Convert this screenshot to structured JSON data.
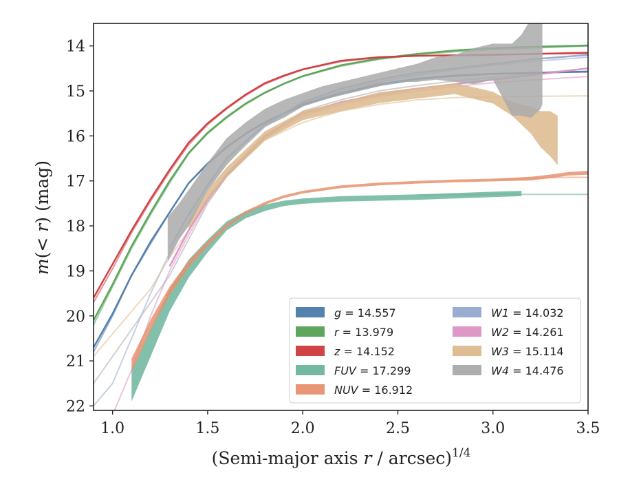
{
  "chart_data": {
    "type": "area",
    "xlabel": "(Semi-major axis r / arcsec)^1/4",
    "xlabel_main": "(Semi-major axis ",
    "xlabel_var": "r",
    "xlabel_rest": " / arcsec)",
    "xlabel_sup": "1/4",
    "ylabel": "m(< r) (mag)",
    "ylabel_m": "m",
    "ylabel_paren": "(< ",
    "ylabel_r": "r",
    "ylabel_close": ")",
    "ylabel_unit": " (mag)",
    "xlim": [
      0.9,
      3.5
    ],
    "ylim": [
      22.1,
      13.5
    ],
    "y_inverted": true,
    "xticks": [
      1.0,
      1.5,
      2.0,
      2.5,
      3.0,
      3.5
    ],
    "xtick_labels": [
      "1.0",
      "1.5",
      "2.0",
      "2.5",
      "3.0",
      "3.5"
    ],
    "yticks": [
      14,
      15,
      16,
      17,
      18,
      19,
      20,
      21,
      22
    ],
    "ytick_labels": [
      "14",
      "15",
      "16",
      "17",
      "18",
      "19",
      "20",
      "21",
      "22"
    ],
    "grid": false,
    "legend_position": "lower-right",
    "series": [
      {
        "name": "g",
        "label_var": "g",
        "label_value": " = 14.557",
        "color": "#4c7aaa",
        "total": 14.557,
        "model_x": [
          0.9,
          1.0,
          1.1,
          1.2,
          1.3,
          1.4,
          1.5,
          1.6,
          1.7,
          1.8,
          1.9,
          2.0,
          2.2,
          2.4,
          2.6,
          2.8,
          3.0,
          3.2,
          3.5
        ],
        "model_y": [
          20.8,
          20.0,
          19.1,
          18.4,
          17.7,
          17.05,
          16.6,
          16.25,
          15.95,
          15.7,
          15.5,
          15.33,
          15.07,
          14.88,
          14.75,
          14.67,
          14.62,
          14.6,
          14.58
        ],
        "obs_x": [
          0.9,
          1.0,
          1.1,
          1.2,
          1.3,
          1.4,
          1.5,
          1.6,
          1.7,
          1.8,
          1.9,
          2.0,
          2.2,
          2.4,
          2.6,
          2.8,
          3.0,
          3.2,
          3.5
        ],
        "obs_y": [
          20.7,
          19.95,
          19.1,
          18.35,
          17.7,
          17.05,
          16.62,
          16.25,
          15.95,
          15.7,
          15.5,
          15.3,
          15.05,
          14.85,
          14.73,
          14.66,
          14.62,
          14.6,
          14.57
        ]
      },
      {
        "name": "r",
        "label_var": "r",
        "label_value": " = 13.979",
        "color": "#55a154",
        "total": 13.979,
        "model_x": [
          0.9,
          1.0,
          1.1,
          1.2,
          1.3,
          1.4,
          1.5,
          1.6,
          1.7,
          1.8,
          1.9,
          2.0,
          2.2,
          2.4,
          2.6,
          2.8,
          3.0,
          3.2,
          3.5
        ],
        "model_y": [
          20.2,
          19.35,
          18.5,
          17.75,
          17.05,
          16.4,
          15.95,
          15.6,
          15.3,
          15.05,
          14.85,
          14.68,
          14.45,
          14.3,
          14.2,
          14.13,
          14.08,
          14.05,
          14.0
        ],
        "obs_x": [
          0.9,
          1.0,
          1.1,
          1.2,
          1.3,
          1.4,
          1.5,
          1.6,
          1.7,
          1.8,
          1.9,
          2.0,
          2.2,
          2.4,
          2.6,
          2.8,
          3.0,
          3.2,
          3.5
        ],
        "obs_y": [
          20.1,
          19.3,
          18.45,
          17.7,
          17.0,
          16.38,
          15.93,
          15.58,
          15.28,
          15.04,
          14.84,
          14.67,
          14.43,
          14.28,
          14.18,
          14.1,
          14.05,
          14.02,
          13.99
        ]
      },
      {
        "name": "z",
        "label_var": "z",
        "label_value": " = 14.152",
        "color": "#cd3a3e",
        "total": 14.152,
        "model_x": [
          0.9,
          1.0,
          1.1,
          1.2,
          1.3,
          1.4,
          1.5,
          1.6,
          1.7,
          1.8,
          1.9,
          2.0,
          2.2,
          2.4,
          2.6,
          2.8,
          3.0,
          3.2,
          3.5
        ],
        "model_y": [
          19.7,
          18.95,
          18.15,
          17.45,
          16.8,
          16.2,
          15.75,
          15.4,
          15.1,
          14.85,
          14.68,
          14.53,
          14.35,
          14.26,
          14.22,
          14.2,
          14.19,
          14.18,
          14.17
        ],
        "obs_x": [
          0.9,
          1.0,
          1.1,
          1.2,
          1.3,
          1.4,
          1.5,
          1.6,
          1.7,
          1.8,
          1.9,
          2.0,
          2.2,
          2.4,
          2.6,
          2.8,
          3.0,
          3.2,
          3.5
        ],
        "obs_y": [
          19.6,
          18.85,
          18.1,
          17.4,
          16.75,
          16.15,
          15.72,
          15.38,
          15.08,
          14.83,
          14.66,
          14.52,
          14.33,
          14.25,
          14.22,
          14.21,
          14.2,
          14.18,
          14.15
        ]
      },
      {
        "name": "FUV",
        "label_var": "FUV",
        "label_value": " = 17.299",
        "color": "#6cb59d",
        "total": 17.299,
        "model_x": [
          2.6,
          2.8,
          3.0,
          3.15,
          3.3,
          3.5
        ],
        "model_y": [
          17.32,
          17.31,
          17.3,
          17.3,
          17.3,
          17.3
        ],
        "obs_x": [
          1.1,
          1.2,
          1.3,
          1.4,
          1.5,
          1.6,
          1.7,
          1.8,
          1.9,
          2.0,
          2.2,
          2.4,
          2.6,
          2.8,
          3.0,
          3.15
        ],
        "obs_y": [
          21.55,
          20.6,
          19.65,
          18.95,
          18.45,
          18.0,
          17.75,
          17.6,
          17.5,
          17.45,
          17.4,
          17.38,
          17.36,
          17.33,
          17.3,
          17.28
        ],
        "obs_err": [
          0.35,
          0.3,
          0.25,
          0.2,
          0.14,
          0.1,
          0.08,
          0.07,
          0.06,
          0.06,
          0.06,
          0.06,
          0.06,
          0.06,
          0.06,
          0.06
        ]
      },
      {
        "name": "NUV",
        "label_var": "NUV",
        "label_value": " = 16.912",
        "color": "#e8906d",
        "total": 16.912,
        "model_x": [
          3.0,
          3.1,
          3.2,
          3.3,
          3.4,
          3.5
        ],
        "model_y": [
          16.98,
          16.96,
          16.94,
          16.93,
          16.92,
          16.92
        ],
        "obs_x": [
          1.1,
          1.2,
          1.3,
          1.4,
          1.5,
          1.6,
          1.7,
          1.8,
          1.9,
          2.0,
          2.2,
          2.4,
          2.6,
          2.8,
          3.0,
          3.2,
          3.3,
          3.4,
          3.5
        ],
        "obs_y": [
          21.1,
          20.2,
          19.45,
          18.85,
          18.4,
          18.0,
          17.7,
          17.5,
          17.35,
          17.25,
          17.13,
          17.07,
          17.03,
          17.0,
          16.98,
          16.95,
          16.9,
          16.84,
          16.82
        ],
        "obs_err": [
          0.15,
          0.12,
          0.1,
          0.07,
          0.05,
          0.04,
          0.03,
          0.03,
          0.03,
          0.03,
          0.03,
          0.03,
          0.03,
          0.03,
          0.03,
          0.04,
          0.04,
          0.04,
          0.04
        ]
      },
      {
        "name": "W1",
        "label_var": "W1",
        "label_value": " = 14.032",
        "color": "#96a8cf",
        "total": 14.032,
        "model_x": [
          0.9,
          1.0,
          1.1,
          1.2,
          1.3,
          1.4,
          1.5,
          1.6,
          1.8,
          2.0,
          2.2,
          2.4,
          2.6,
          2.8,
          3.0,
          3.2,
          3.5
        ],
        "model_y": [
          22.0,
          21.5,
          20.5,
          19.5,
          18.6,
          17.9,
          17.2,
          16.6,
          15.8,
          15.3,
          15.0,
          14.8,
          14.65,
          14.53,
          14.43,
          14.35,
          14.25
        ],
        "obs_x": [
          1.3,
          1.4,
          1.5,
          1.6,
          1.8,
          2.0,
          2.2,
          2.4,
          2.6,
          2.8,
          3.0,
          3.2,
          3.5
        ],
        "obs_y": [
          18.5,
          17.75,
          17.1,
          16.5,
          15.75,
          15.25,
          14.95,
          14.75,
          14.6,
          14.5,
          14.4,
          14.3,
          14.2
        ]
      },
      {
        "name": "W2",
        "label_var": "W2",
        "label_value": " = 14.261",
        "color": "#dc92c4",
        "total": 14.261,
        "model_x": [
          0.9,
          1.0,
          1.1,
          1.2,
          1.3,
          1.4,
          1.5,
          1.6,
          1.8,
          2.0,
          2.2,
          2.4,
          2.6,
          2.8,
          3.0,
          3.2,
          3.5
        ],
        "model_y": [
          22.4,
          22.2,
          21.2,
          20.0,
          19.0,
          18.2,
          17.45,
          16.9,
          16.05,
          15.55,
          15.3,
          15.12,
          15.0,
          14.9,
          14.82,
          14.76,
          14.68
        ],
        "obs_x": [
          1.3,
          1.4,
          1.5,
          1.6,
          1.8,
          2.0,
          2.2,
          2.4,
          2.6,
          2.8,
          3.0,
          3.2,
          3.5
        ],
        "obs_y": [
          18.9,
          18.1,
          17.4,
          16.85,
          16.0,
          15.5,
          15.25,
          15.08,
          14.95,
          14.85,
          14.75,
          14.65,
          14.5
        ]
      },
      {
        "name": "W3",
        "label_var": "W3",
        "label_value": " = 15.114",
        "color": "#dcb98d",
        "total": 15.114,
        "model_x": [
          0.9,
          1.0,
          1.1,
          1.2,
          1.3,
          1.4,
          1.5,
          1.6,
          1.8,
          2.0,
          2.2,
          2.4,
          2.6,
          2.8,
          3.0,
          3.2,
          3.5
        ],
        "model_y": [
          20.9,
          20.4,
          19.9,
          19.4,
          18.7,
          18.1,
          17.45,
          16.9,
          16.1,
          15.7,
          15.45,
          15.3,
          15.2,
          15.15,
          15.13,
          15.12,
          15.11
        ],
        "obs_x": [
          1.4,
          1.5,
          1.6,
          1.8,
          2.0,
          2.2,
          2.4,
          2.6,
          2.8,
          2.9,
          3.0,
          3.1,
          3.2,
          3.25,
          3.3,
          3.34
        ],
        "obs_y": [
          18.0,
          17.3,
          16.8,
          16.0,
          15.55,
          15.35,
          15.15,
          15.05,
          14.95,
          15.05,
          15.15,
          15.4,
          15.65,
          15.85,
          15.95,
          16.1
        ],
        "obs_err": [
          0.08,
          0.1,
          0.1,
          0.1,
          0.1,
          0.1,
          0.12,
          0.12,
          0.12,
          0.13,
          0.13,
          0.15,
          0.3,
          0.4,
          0.5,
          0.55
        ]
      },
      {
        "name": "W4",
        "label_var": "W4",
        "label_value": " = 14.476",
        "color": "#aaaaaa",
        "total": 14.476,
        "model_x": [
          0.9,
          1.0,
          1.1,
          1.2,
          1.3,
          1.4,
          1.5,
          1.6,
          1.8,
          2.0,
          2.2,
          2.4,
          2.6,
          2.8,
          3.0,
          3.2,
          3.5
        ],
        "model_y": [
          21.5,
          20.9,
          20.3,
          19.7,
          19.1,
          18.3,
          17.5,
          16.9,
          16.05,
          15.45,
          15.2,
          15.0,
          14.88,
          14.78,
          14.7,
          14.62,
          14.5
        ],
        "obs_x": [
          1.29,
          1.35,
          1.4,
          1.5,
          1.6,
          1.7,
          1.8,
          1.9,
          2.0,
          2.1,
          2.2,
          2.3,
          2.4,
          2.5,
          2.6,
          2.7,
          2.8,
          2.9,
          3.0,
          3.05,
          3.1,
          3.15,
          3.2,
          3.25,
          3.26
        ],
        "obs_y": [
          18.3,
          17.9,
          17.6,
          16.9,
          16.35,
          15.95,
          15.6,
          15.4,
          15.2,
          15.05,
          14.95,
          14.85,
          14.75,
          14.65,
          14.6,
          14.5,
          14.5,
          14.45,
          14.35,
          14.55,
          14.75,
          14.65,
          14.5,
          14.4,
          14.4
        ],
        "obs_err": [
          0.5,
          0.4,
          0.4,
          0.3,
          0.3,
          0.25,
          0.2,
          0.2,
          0.15,
          0.15,
          0.15,
          0.15,
          0.15,
          0.15,
          0.2,
          0.25,
          0.3,
          0.4,
          0.4,
          0.6,
          0.8,
          0.9,
          1.1,
          1.0,
          0.9
        ]
      }
    ],
    "legend_order": [
      "g",
      "r",
      "z",
      "FUV",
      "NUV",
      "W1",
      "W2",
      "W3",
      "W4"
    ]
  }
}
